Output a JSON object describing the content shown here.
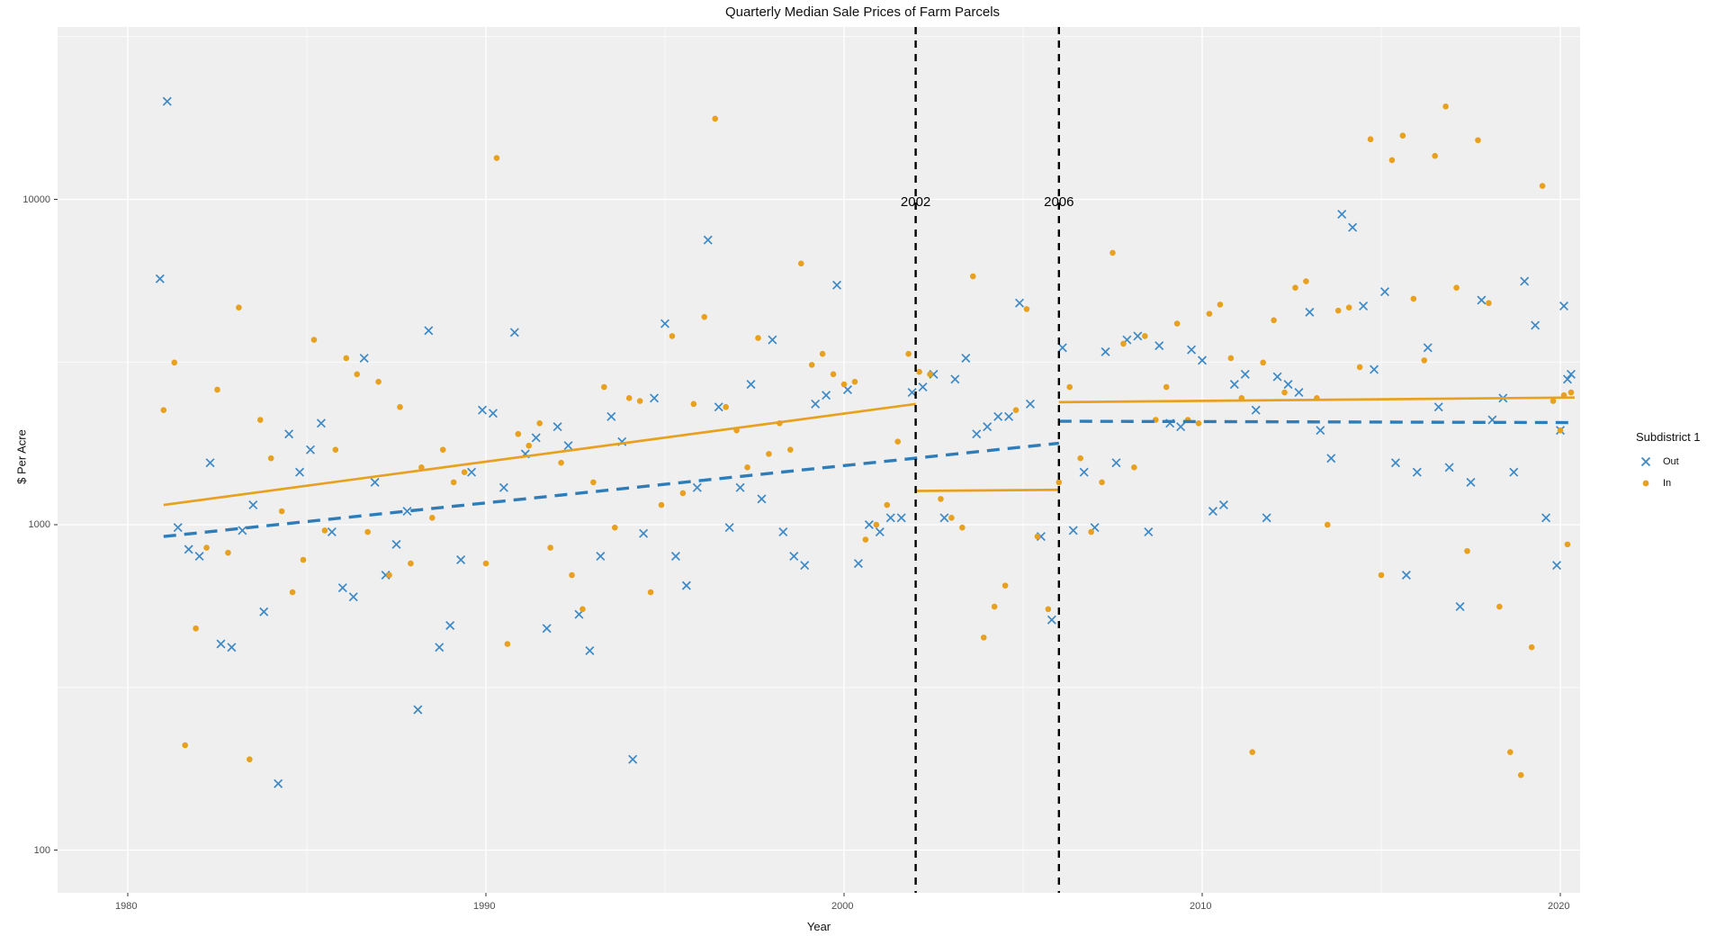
{
  "title": "Quarterly Median Sale Prices of Farm Parcels",
  "legend": {
    "title": "Subdistrict 1",
    "items": [
      {
        "label": "Out",
        "marker": "x-cross",
        "color": "#3D89C6"
      },
      {
        "label": "In",
        "marker": "dot",
        "color": "#E7A11E"
      }
    ]
  },
  "colors": {
    "panel_bg": "#EFEFEF",
    "gridline": "#FFFFFF",
    "tick_text": "#4D4D4D",
    "out_marker": "#3D89C6",
    "out_line": "#2E7DB8",
    "in_marker": "#E7A11E",
    "in_line": "#E7A11E",
    "vline": "#000000"
  },
  "chart_data": {
    "type": "scatter",
    "title": "Quarterly Median Sale Prices of Farm Parcels",
    "xlabel": "Year",
    "ylabel": "$ Per Acre",
    "x_scale": "linear",
    "y_scale": "log10",
    "xlim": [
      1978,
      2020.6
    ],
    "ylim": [
      75,
      34000
    ],
    "x_ticks": [
      1980,
      1990,
      2000,
      2010,
      2020
    ],
    "x_minor_ticks": [
      1985,
      1995,
      2005,
      2015
    ],
    "y_ticks": [
      100,
      1000,
      10000
    ],
    "y_minor_ticks": [
      316,
      3162,
      31623
    ],
    "grid": true,
    "legend_position": "right",
    "annotations": [
      {
        "label": "2002",
        "year": 2002,
        "style": "dashed-vertical"
      },
      {
        "label": "2006",
        "year": 2006,
        "style": "dashed-vertical"
      }
    ],
    "trend_lines": [
      {
        "series": "In",
        "style": "solid",
        "color": "#E7A11E",
        "points": [
          [
            1981.0,
            1150
          ],
          [
            2002.0,
            2350
          ]
        ]
      },
      {
        "series": "In",
        "style": "solid",
        "color": "#E7A11E",
        "points": [
          [
            2002.0,
            1270
          ],
          [
            2006.0,
            1280
          ]
        ]
      },
      {
        "series": "In",
        "style": "solid",
        "color": "#E7A11E",
        "points": [
          [
            2006.0,
            2380
          ],
          [
            2020.4,
            2460
          ]
        ]
      },
      {
        "series": "Out",
        "style": "dashed",
        "color": "#2E7DB8",
        "points": [
          [
            1981.0,
            920
          ],
          [
            2006.0,
            1780
          ]
        ]
      },
      {
        "series": "Out",
        "style": "dashed",
        "color": "#2E7DB8",
        "points": [
          [
            2006.0,
            2080
          ],
          [
            2020.4,
            2060
          ]
        ]
      }
    ],
    "series": [
      {
        "name": "Out",
        "marker": "x-cross",
        "color": "#3D89C6",
        "points": [
          [
            1980.9,
            5700
          ],
          [
            1981.1,
            20000
          ],
          [
            1981.4,
            980
          ],
          [
            1981.7,
            840
          ],
          [
            1982.0,
            800
          ],
          [
            1982.3,
            1550
          ],
          [
            1982.6,
            430
          ],
          [
            1982.9,
            420
          ],
          [
            1983.2,
            960
          ],
          [
            1983.5,
            1150
          ],
          [
            1983.8,
            540
          ],
          [
            1984.2,
            160
          ],
          [
            1984.5,
            1900
          ],
          [
            1984.8,
            1450
          ],
          [
            1985.1,
            1700
          ],
          [
            1985.4,
            2050
          ],
          [
            1985.7,
            950
          ],
          [
            1986.0,
            640
          ],
          [
            1986.3,
            600
          ],
          [
            1986.6,
            3250
          ],
          [
            1986.9,
            1350
          ],
          [
            1987.2,
            700
          ],
          [
            1987.5,
            870
          ],
          [
            1987.8,
            1100
          ],
          [
            1988.1,
            270
          ],
          [
            1988.4,
            3950
          ],
          [
            1988.7,
            420
          ],
          [
            1989.0,
            490
          ],
          [
            1989.3,
            780
          ],
          [
            1989.6,
            1450
          ],
          [
            1989.9,
            2250
          ],
          [
            1990.2,
            2200
          ],
          [
            1990.5,
            1300
          ],
          [
            1990.8,
            3900
          ],
          [
            1991.1,
            1650
          ],
          [
            1991.4,
            1850
          ],
          [
            1991.7,
            480
          ],
          [
            1992.0,
            2000
          ],
          [
            1992.3,
            1750
          ],
          [
            1992.6,
            530
          ],
          [
            1992.9,
            410
          ],
          [
            1993.2,
            800
          ],
          [
            1993.5,
            2150
          ],
          [
            1993.8,
            1800
          ],
          [
            1994.1,
            190
          ],
          [
            1994.4,
            940
          ],
          [
            1994.7,
            2450
          ],
          [
            1995.0,
            4150
          ],
          [
            1995.3,
            800
          ],
          [
            1995.6,
            650
          ],
          [
            1995.9,
            1300
          ],
          [
            1996.2,
            7500
          ],
          [
            1996.5,
            2300
          ],
          [
            1996.8,
            980
          ],
          [
            1997.1,
            1300
          ],
          [
            1997.4,
            2700
          ],
          [
            1997.7,
            1200
          ],
          [
            1998.0,
            3700
          ],
          [
            1998.3,
            950
          ],
          [
            1998.6,
            800
          ],
          [
            1998.9,
            750
          ],
          [
            1999.2,
            2350
          ],
          [
            1999.5,
            2500
          ],
          [
            1999.8,
            5450
          ],
          [
            2000.1,
            2600
          ],
          [
            2000.4,
            760
          ],
          [
            2000.7,
            1000
          ],
          [
            2001.0,
            950
          ],
          [
            2001.3,
            1050
          ],
          [
            2001.6,
            1050
          ],
          [
            2001.9,
            2550
          ],
          [
            2002.2,
            2650
          ],
          [
            2002.5,
            2900
          ],
          [
            2002.8,
            1050
          ],
          [
            2003.1,
            2800
          ],
          [
            2003.4,
            3250
          ],
          [
            2003.7,
            1900
          ],
          [
            2004.0,
            2000
          ],
          [
            2004.3,
            2150
          ],
          [
            2004.6,
            2150
          ],
          [
            2004.9,
            4800
          ],
          [
            2005.2,
            2350
          ],
          [
            2005.5,
            920
          ],
          [
            2005.8,
            510
          ],
          [
            2006.1,
            3500
          ],
          [
            2006.4,
            960
          ],
          [
            2006.7,
            1450
          ],
          [
            2007.0,
            980
          ],
          [
            2007.3,
            3400
          ],
          [
            2007.6,
            1550
          ],
          [
            2007.9,
            3700
          ],
          [
            2008.2,
            3800
          ],
          [
            2008.5,
            950
          ],
          [
            2008.8,
            3550
          ],
          [
            2009.1,
            2050
          ],
          [
            2009.4,
            2000
          ],
          [
            2009.7,
            3450
          ],
          [
            2010.0,
            3200
          ],
          [
            2010.3,
            1100
          ],
          [
            2010.6,
            1150
          ],
          [
            2010.9,
            2700
          ],
          [
            2011.2,
            2900
          ],
          [
            2011.5,
            2250
          ],
          [
            2011.8,
            1050
          ],
          [
            2012.1,
            2850
          ],
          [
            2012.4,
            2700
          ],
          [
            2012.7,
            2550
          ],
          [
            2013.0,
            4500
          ],
          [
            2013.3,
            1950
          ],
          [
            2013.6,
            1600
          ],
          [
            2013.9,
            9000
          ],
          [
            2014.2,
            8200
          ],
          [
            2014.5,
            4700
          ],
          [
            2014.8,
            3000
          ],
          [
            2015.1,
            5200
          ],
          [
            2015.4,
            1550
          ],
          [
            2015.7,
            700
          ],
          [
            2016.0,
            1450
          ],
          [
            2016.3,
            3500
          ],
          [
            2016.6,
            2300
          ],
          [
            2016.9,
            1500
          ],
          [
            2017.2,
            560
          ],
          [
            2017.5,
            1350
          ],
          [
            2017.8,
            4900
          ],
          [
            2018.1,
            2100
          ],
          [
            2018.4,
            2450
          ],
          [
            2018.7,
            1450
          ],
          [
            2019.0,
            5600
          ],
          [
            2019.3,
            4100
          ],
          [
            2019.6,
            1050
          ],
          [
            2019.9,
            750
          ],
          [
            2020.0,
            1950
          ],
          [
            2020.1,
            4700
          ],
          [
            2020.2,
            2800
          ],
          [
            2020.3,
            2900
          ]
        ]
      },
      {
        "name": "In",
        "marker": "dot",
        "color": "#E7A11E",
        "points": [
          [
            1981.0,
            2250
          ],
          [
            1981.3,
            3150
          ],
          [
            1981.6,
            210
          ],
          [
            1981.9,
            480
          ],
          [
            1982.2,
            850
          ],
          [
            1982.5,
            2600
          ],
          [
            1982.8,
            820
          ],
          [
            1983.1,
            4650
          ],
          [
            1983.4,
            190
          ],
          [
            1983.7,
            2100
          ],
          [
            1984.0,
            1600
          ],
          [
            1984.3,
            1100
          ],
          [
            1984.6,
            620
          ],
          [
            1984.9,
            780
          ],
          [
            1985.2,
            3700
          ],
          [
            1985.5,
            960
          ],
          [
            1985.8,
            1700
          ],
          [
            1986.1,
            3250
          ],
          [
            1986.4,
            2900
          ],
          [
            1986.7,
            950
          ],
          [
            1987.0,
            2750
          ],
          [
            1987.3,
            700
          ],
          [
            1987.6,
            2300
          ],
          [
            1987.9,
            760
          ],
          [
            1988.2,
            1500
          ],
          [
            1988.5,
            1050
          ],
          [
            1988.8,
            1700
          ],
          [
            1989.1,
            1350
          ],
          [
            1989.4,
            1450
          ],
          [
            1990.0,
            760
          ],
          [
            1990.3,
            13400
          ],
          [
            1990.6,
            430
          ],
          [
            1990.9,
            1900
          ],
          [
            1991.2,
            1750
          ],
          [
            1991.5,
            2050
          ],
          [
            1991.8,
            850
          ],
          [
            1992.1,
            1550
          ],
          [
            1992.4,
            700
          ],
          [
            1992.7,
            550
          ],
          [
            1993.0,
            1350
          ],
          [
            1993.3,
            2650
          ],
          [
            1993.6,
            980
          ],
          [
            1994.0,
            2450
          ],
          [
            1994.3,
            2400
          ],
          [
            1994.6,
            620
          ],
          [
            1994.9,
            1150
          ],
          [
            1995.2,
            3800
          ],
          [
            1995.5,
            1250
          ],
          [
            1995.8,
            2350
          ],
          [
            1996.1,
            4350
          ],
          [
            1996.4,
            17700
          ],
          [
            1996.7,
            2300
          ],
          [
            1997.0,
            1950
          ],
          [
            1997.3,
            1500
          ],
          [
            1997.6,
            3750
          ],
          [
            1997.9,
            1650
          ],
          [
            1998.2,
            2050
          ],
          [
            1998.5,
            1700
          ],
          [
            1998.8,
            6350
          ],
          [
            1999.1,
            3100
          ],
          [
            1999.4,
            3350
          ],
          [
            1999.7,
            2900
          ],
          [
            2000.0,
            2700
          ],
          [
            2000.3,
            2750
          ],
          [
            2000.6,
            900
          ],
          [
            2000.9,
            1000
          ],
          [
            2001.2,
            1150
          ],
          [
            2001.5,
            1800
          ],
          [
            2001.8,
            3350
          ],
          [
            2002.1,
            2950
          ],
          [
            2002.4,
            2900
          ],
          [
            2002.7,
            1200
          ],
          [
            2003.0,
            1050
          ],
          [
            2003.3,
            980
          ],
          [
            2003.6,
            5800
          ],
          [
            2003.9,
            450
          ],
          [
            2004.2,
            560
          ],
          [
            2004.5,
            650
          ],
          [
            2004.8,
            2250
          ],
          [
            2005.1,
            4600
          ],
          [
            2005.4,
            920
          ],
          [
            2005.7,
            550
          ],
          [
            2006.0,
            1350
          ],
          [
            2006.3,
            2650
          ],
          [
            2006.6,
            1600
          ],
          [
            2006.9,
            950
          ],
          [
            2007.2,
            1350
          ],
          [
            2007.5,
            6850
          ],
          [
            2007.8,
            3600
          ],
          [
            2008.1,
            1500
          ],
          [
            2008.4,
            3800
          ],
          [
            2008.7,
            2100
          ],
          [
            2009.0,
            2650
          ],
          [
            2009.3,
            4150
          ],
          [
            2009.6,
            2100
          ],
          [
            2009.9,
            2050
          ],
          [
            2010.2,
            4450
          ],
          [
            2010.5,
            4750
          ],
          [
            2010.8,
            3250
          ],
          [
            2011.1,
            2450
          ],
          [
            2011.4,
            200
          ],
          [
            2011.7,
            3150
          ],
          [
            2012.0,
            4250
          ],
          [
            2012.3,
            2550
          ],
          [
            2012.6,
            5350
          ],
          [
            2012.9,
            5600
          ],
          [
            2013.2,
            2450
          ],
          [
            2013.5,
            1000
          ],
          [
            2013.8,
            4550
          ],
          [
            2014.1,
            4650
          ],
          [
            2014.4,
            3050
          ],
          [
            2014.7,
            15300
          ],
          [
            2015.0,
            700
          ],
          [
            2015.3,
            13200
          ],
          [
            2015.6,
            15700
          ],
          [
            2015.9,
            4950
          ],
          [
            2016.2,
            3200
          ],
          [
            2016.5,
            13600
          ],
          [
            2016.8,
            19300
          ],
          [
            2017.1,
            5350
          ],
          [
            2017.4,
            830
          ],
          [
            2017.7,
            15200
          ],
          [
            2018.0,
            4800
          ],
          [
            2018.3,
            560
          ],
          [
            2018.6,
            200
          ],
          [
            2018.9,
            170
          ],
          [
            2019.2,
            420
          ],
          [
            2019.5,
            11000
          ],
          [
            2019.8,
            2400
          ],
          [
            2020.0,
            1950
          ],
          [
            2020.1,
            2500
          ],
          [
            2020.2,
            870
          ],
          [
            2020.3,
            2550
          ]
        ]
      }
    ]
  }
}
